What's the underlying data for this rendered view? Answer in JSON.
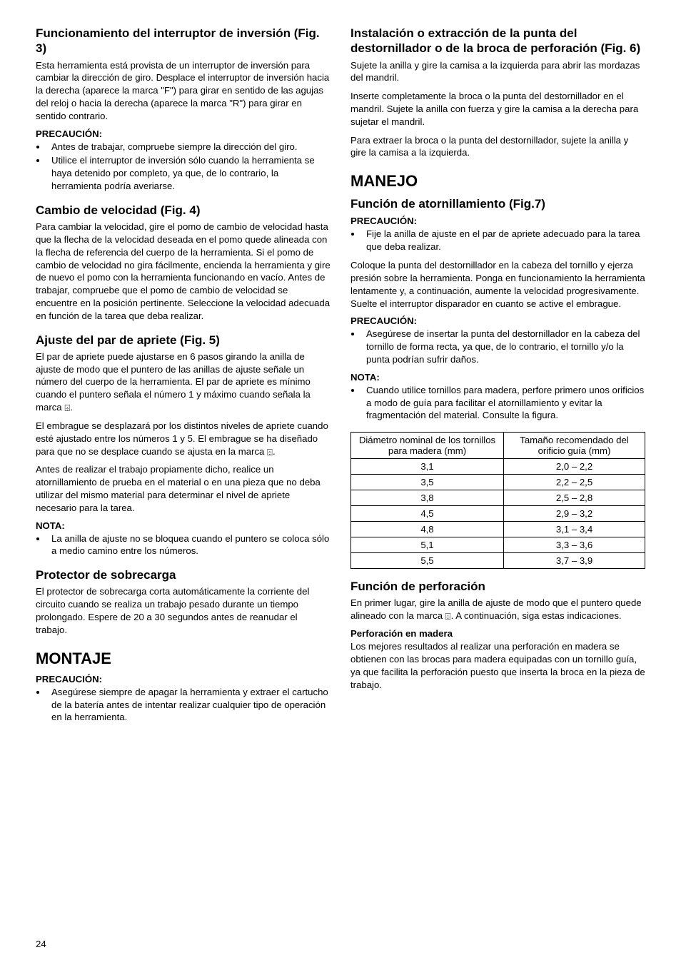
{
  "icons": {
    "drill": "⌹"
  },
  "left": {
    "s1": {
      "heading": "Funcionamiento del interruptor de inversión (Fig. 3)",
      "p1": "Esta herramienta está provista de un interruptor de inversión para cambiar la dirección de giro. Desplace el interruptor de inversión hacia la derecha (aparece la marca \"F\") para girar en sentido de las agujas del reloj o hacia la derecha (aparece la marca \"R\") para girar en sentido contrario.",
      "caution_label": "PRECAUCIÓN:",
      "caution_items": [
        "Antes de trabajar, compruebe siempre la dirección del giro.",
        "Utilice el interruptor de inversión sólo cuando la herramienta se haya detenido por completo, ya que, de lo contrario, la herramienta podría averiarse."
      ]
    },
    "s2": {
      "heading": "Cambio de velocidad (Fig. 4)",
      "p1": "Para cambiar la velocidad, gire el pomo de cambio de velocidad hasta que la flecha de la velocidad deseada en el pomo quede alineada con la flecha de referencia del cuerpo de la herramienta. Si el pomo de cambio de velocidad no gira fácilmente, encienda la herramienta y gire de nuevo el pomo con la herramienta funcionando en vacío. Antes de trabajar, compruebe que el pomo de cambio de velocidad se encuentre en la posición pertinente. Seleccione la velocidad adecuada en función de la tarea que deba realizar."
    },
    "s3": {
      "heading": "Ajuste del par de apriete (Fig. 5)",
      "p1_a": "El par de apriete puede ajustarse en 6 pasos girando la anilla de ajuste de modo que el puntero de las anillas de ajuste señale un número del cuerpo de la herramienta. El par de apriete es mínimo cuando el puntero señala el número 1 y máximo cuando señala la marca ",
      "p1_b": ".",
      "p2_a": "El embrague se desplazará por los distintos niveles de apriete cuando esté ajustado entre los números 1 y 5. El embrague se ha diseñado para que no se desplace cuando se ajusta en la marca ",
      "p2_b": ".",
      "p3": "Antes de realizar el trabajo propiamente dicho, realice un atornillamiento de prueba en el material o en una pieza que no deba utilizar del mismo material para determinar el nivel de apriete necesario para la tarea.",
      "note_label": "NOTA:",
      "note_items": [
        "La anilla de ajuste no se bloquea cuando el puntero se coloca sólo a medio camino entre los números."
      ]
    },
    "s4": {
      "heading": "Protector de sobrecarga",
      "p1": "El protector de sobrecarga corta automáticamente la corriente del circuito cuando se realiza un trabajo pesado durante un tiempo prolongado. Espere de 20 a 30 segundos antes de reanudar el trabajo."
    },
    "s5": {
      "h1": "MONTAJE",
      "caution_label": "PRECAUCIÓN:",
      "caution_items": [
        "Asegúrese siempre de apagar la herramienta y extraer el cartucho de la batería antes de intentar realizar cualquier tipo de operación en la herramienta."
      ]
    }
  },
  "right": {
    "s1": {
      "heading": "Instalación o extracción de la punta del destornillador o de la broca de perforación (Fig. 6)",
      "p1": "Sujete la anilla y gire la camisa a la izquierda para abrir las mordazas del mandril.",
      "p2": "Inserte completamente la broca o la punta del destornillador en el mandril. Sujete la anilla con fuerza y gire la camisa a la derecha para sujetar el mandril.",
      "p3": "Para extraer la broca o la punta del destornillador, sujete la anilla y gire la camisa a la izquierda."
    },
    "s2": {
      "h1": "MANEJO",
      "heading": "Función de atornillamiento (Fig.7)",
      "caution_label": "PRECAUCIÓN:",
      "caution_items": [
        "Fije la anilla de ajuste en el par de apriete adecuado para la tarea que deba realizar."
      ],
      "p1": "Coloque la punta del destornillador en la cabeza del tornillo y ejerza presión sobre la herramienta. Ponga en funcionamiento la herramienta lentamente y, a continuación, aumente la velocidad progresivamente. Suelte el interruptor disparador en cuanto se active el embrague.",
      "caution2_label": "PRECAUCIÓN:",
      "caution2_items": [
        "Asegúrese de insertar la punta del destornillador en la cabeza del tornillo de forma recta, ya que, de lo contrario, el tornillo y/o la punta podrían sufrir daños."
      ],
      "note_label": "NOTA:",
      "note_items": [
        "Cuando utilice tornillos para madera, perfore primero unos orificios a modo de guía para facilitar el atornillamiento y evitar la fragmentación del material. Consulte la figura."
      ]
    },
    "table": {
      "h1": "Diámetro nominal de los tornillos para madera (mm)",
      "h2": "Tamaño recomendado del orificio guía (mm)",
      "rows": [
        [
          "3,1",
          "2,0 – 2,2"
        ],
        [
          "3,5",
          "2,2 – 2,5"
        ],
        [
          "3,8",
          "2,5 – 2,8"
        ],
        [
          "4,5",
          "2,9 – 3,2"
        ],
        [
          "4,8",
          "3,1 – 3,4"
        ],
        [
          "5,1",
          "3,3 – 3,6"
        ],
        [
          "5,5",
          "3,7 – 3,9"
        ]
      ]
    },
    "s3": {
      "heading": "Función de perforación",
      "p1_a": "En primer lugar, gire la anilla de ajuste de modo que el puntero quede alineado con la marca ",
      "p1_b": ". A continuación, siga estas indicaciones.",
      "sub": "Perforación en madera",
      "p2": "Los mejores resultados al realizar una perforación en madera se obtienen con las brocas para madera equipadas con un tornillo guía, ya que facilita la perforación puesto que inserta la broca en la pieza de trabajo."
    }
  },
  "page_number": "24"
}
